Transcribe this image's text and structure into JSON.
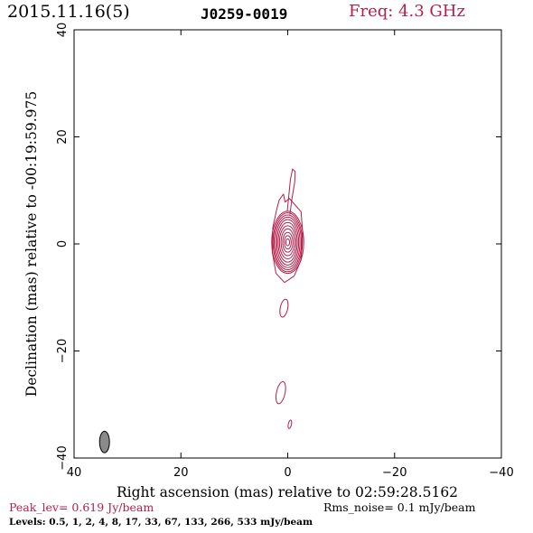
{
  "header": {
    "date": "2015.11.16(5)",
    "source": "J0259-0019",
    "freq": "Freq: 4.3 GHz"
  },
  "footer": {
    "peak": "Peak_lev=  0.619 Jy/beam",
    "rms": "Rms_noise=  0.1 mJy/beam",
    "levels": "Levels: 0.5,   1,   2,   4,   8,  17,  33,  67, 133, 266, 533 mJy/beam"
  },
  "colors": {
    "contour": "#b3204a",
    "peak_text": "#b3204a",
    "beam_fill": "#8a8a8a"
  },
  "chart_data": {
    "type": "contour",
    "xlabel": "Right ascension (mas) relative to 02:59:28.5162",
    "ylabel": "Declination (mas) relative to -00:19:59.975",
    "xlim": [
      40,
      -40
    ],
    "ylim": [
      -40,
      40
    ],
    "xticks": [
      40,
      20,
      0,
      -20,
      -40
    ],
    "yticks": [
      -40,
      -20,
      0,
      20,
      40
    ],
    "xtick_labels": [
      "40",
      "20",
      "0",
      "−20",
      "−40"
    ],
    "ytick_labels": [
      "−40",
      "−20",
      "0",
      "20",
      "40"
    ],
    "core": {
      "x": 0.0,
      "y": 0.3,
      "contours": [
        {
          "rx": 3.0,
          "ry": 5.8
        },
        {
          "rx": 2.75,
          "ry": 5.5
        },
        {
          "rx": 2.55,
          "ry": 5.1
        },
        {
          "rx": 2.3,
          "ry": 4.7
        },
        {
          "rx": 2.05,
          "ry": 4.25
        },
        {
          "rx": 1.8,
          "ry": 3.7
        },
        {
          "rx": 1.55,
          "ry": 3.1
        },
        {
          "rx": 1.25,
          "ry": 2.5
        },
        {
          "rx": 0.95,
          "ry": 1.85
        },
        {
          "rx": 0.65,
          "ry": 1.25
        },
        {
          "rx": 0.35,
          "ry": 0.65
        }
      ],
      "outer_envelope": [
        [
          -0.3,
          8.5
        ],
        [
          -2.5,
          6.0
        ],
        [
          -2.8,
          2.0
        ],
        [
          -2.5,
          -3.0
        ],
        [
          -1.2,
          -6.0
        ],
        [
          0.6,
          -7.2
        ],
        [
          2.2,
          -5.5
        ],
        [
          2.9,
          -1.5
        ],
        [
          2.8,
          3.0
        ],
        [
          2.1,
          6.3
        ],
        [
          1.6,
          8.2
        ],
        [
          0.8,
          9.3
        ],
        [
          0.5,
          7.8
        ]
      ]
    },
    "jet_contour": [
      [
        -0.4,
        5.5
      ],
      [
        -0.8,
        8.5
      ],
      [
        -1.3,
        11.5
      ],
      [
        -1.4,
        13.5
      ],
      [
        -0.9,
        14.0
      ],
      [
        -0.5,
        12.0
      ],
      [
        -0.2,
        9.0
      ],
      [
        0.1,
        6.0
      ]
    ],
    "components": [
      {
        "x": 0.7,
        "y": -12.0,
        "rx": 0.7,
        "ry": 1.7
      },
      {
        "x": 1.3,
        "y": -27.8,
        "rx": 0.8,
        "ry": 2.1
      },
      {
        "x": -0.4,
        "y": -33.7,
        "rx": 0.3,
        "ry": 0.8
      }
    ],
    "beam": {
      "x": 34.3,
      "y": -37.0,
      "major": 4.0,
      "minor": 1.85,
      "pa": 0
    }
  }
}
